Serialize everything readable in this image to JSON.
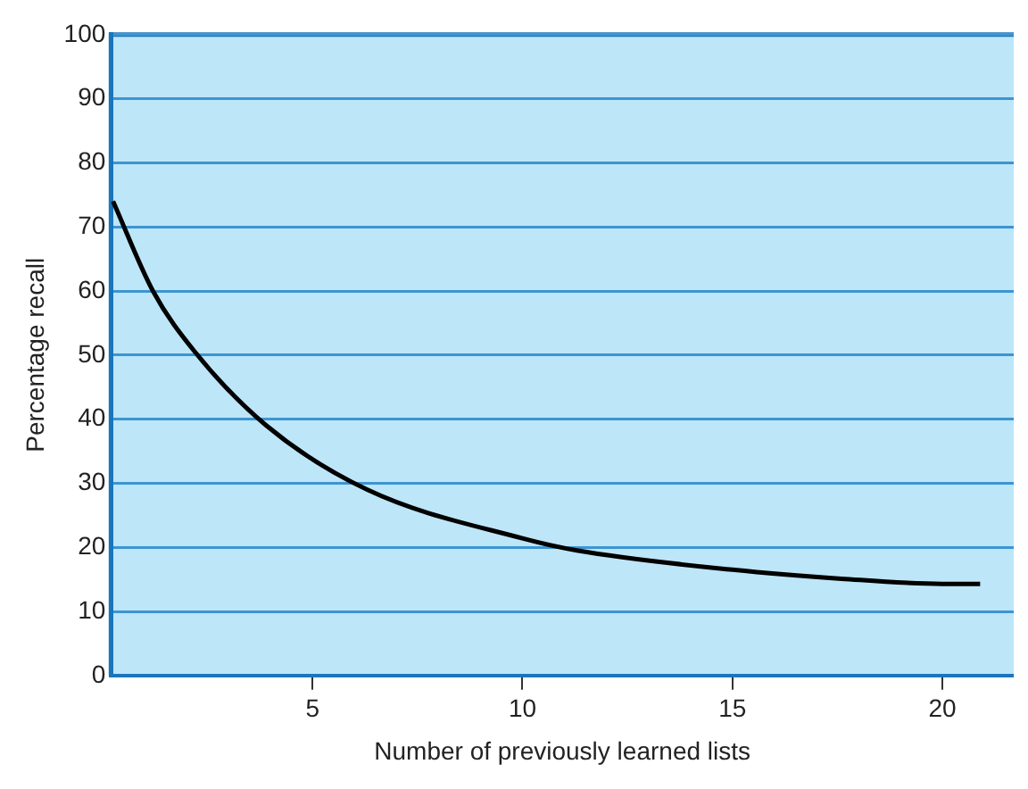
{
  "chart_data": {
    "type": "line",
    "xlabel": "Number of previously learned lists",
    "ylabel": "Percentage recall",
    "x": [
      0.25,
      1.2,
      2.2,
      3.9,
      6.3,
      10,
      11.3,
      15,
      17.6,
      20,
      20.9
    ],
    "series": [
      {
        "color": "#000000",
        "values": [
          74,
          60,
          50.5,
          39,
          29,
          21.4,
          19.5,
          16.5,
          15.1,
          14.3,
          14.3
        ]
      }
    ],
    "xlim": [
      0.2,
      21.7
    ],
    "xticks": [
      5,
      10,
      15,
      20
    ],
    "ylim": [
      0,
      100
    ],
    "yticks": [
      0,
      10,
      20,
      30,
      40,
      50,
      60,
      70,
      80,
      90,
      100
    ],
    "grid": "y",
    "legend": false,
    "marker": "none",
    "line_style": "solid"
  }
}
